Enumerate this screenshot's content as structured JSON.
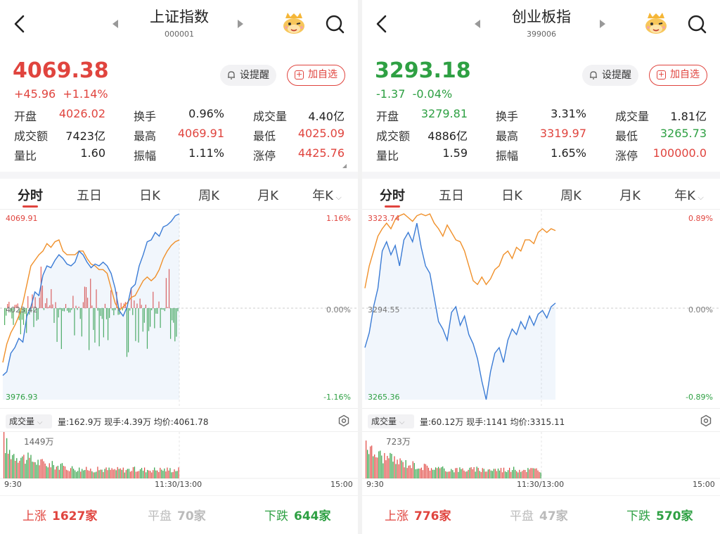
{
  "colors": {
    "up": "#e0443e",
    "down": "#2ea043",
    "line_price": "#3a7bd5",
    "line_avg": "#f0902a"
  },
  "panels": [
    {
      "title": "上证指数",
      "code": "000001",
      "price": "4069.38",
      "change": "+45.96",
      "change_pct": "+1.14%",
      "trend": "up",
      "alert_label": "设提醒",
      "add_label": "加自选",
      "stats": [
        {
          "label": "开盘",
          "value": "4026.02",
          "color": "up"
        },
        {
          "label": "换手",
          "value": "0.96%",
          "color": "neutral"
        },
        {
          "label": "成交量",
          "value": "4.40亿",
          "color": "neutral"
        },
        {
          "label": "成交额",
          "value": "7423亿",
          "color": "neutral"
        },
        {
          "label": "最高",
          "value": "4069.91",
          "color": "up"
        },
        {
          "label": "最低",
          "value": "4025.09",
          "color": "up"
        },
        {
          "label": "量比",
          "value": "1.60",
          "color": "neutral"
        },
        {
          "label": "振幅",
          "value": "1.11%",
          "color": "neutral"
        },
        {
          "label": "涨停",
          "value": "4425.76",
          "color": "up"
        }
      ],
      "tabs": [
        "分时",
        "五日",
        "日K",
        "周K",
        "月K",
        "年K"
      ],
      "chart": {
        "y_top": "4069.91",
        "y_mid": "4023.42",
        "y_bot": "3976.93",
        "pct_top": "1.16%",
        "pct_mid": "0.00%",
        "pct_bot": "-1.16%"
      },
      "volume": {
        "label": "成交量",
        "info": "量:162.9万  现手:4.39万  均价:4061.78",
        "max": "1449万"
      },
      "time_axis": [
        "9:30",
        "11:30/13:00",
        "15:00"
      ],
      "breadth": {
        "up_label": "上涨",
        "up": "1627家",
        "flat_label": "平盘",
        "flat": "70家",
        "down_label": "下跌",
        "down": "644家"
      }
    },
    {
      "title": "创业板指",
      "code": "399006",
      "price": "3293.18",
      "change": "-1.37",
      "change_pct": "-0.04%",
      "trend": "down",
      "alert_label": "设提醒",
      "add_label": "加自选",
      "stats": [
        {
          "label": "开盘",
          "value": "3279.81",
          "color": "down"
        },
        {
          "label": "换手",
          "value": "3.31%",
          "color": "neutral"
        },
        {
          "label": "成交量",
          "value": "1.81亿",
          "color": "neutral"
        },
        {
          "label": "成交额",
          "value": "4886亿",
          "color": "neutral"
        },
        {
          "label": "最高",
          "value": "3319.97",
          "color": "up"
        },
        {
          "label": "最低",
          "value": "3265.73",
          "color": "down"
        },
        {
          "label": "量比",
          "value": "1.59",
          "color": "neutral"
        },
        {
          "label": "振幅",
          "value": "1.65%",
          "color": "neutral"
        },
        {
          "label": "涨停",
          "value": "100000.0",
          "color": "up"
        }
      ],
      "tabs": [
        "分时",
        "五日",
        "日K",
        "周K",
        "月K",
        "年K"
      ],
      "chart": {
        "y_top": "3323.74",
        "y_mid": "3294.55",
        "y_bot": "3265.36",
        "pct_top": "0.89%",
        "pct_mid": "0.00%",
        "pct_bot": "-0.89%"
      },
      "volume": {
        "label": "成交量",
        "info": "量:60.12万  现手:1141  均价:3315.11",
        "max": "723万"
      },
      "time_axis": [
        "9:30",
        "11:30/13:00",
        "15:00"
      ],
      "breadth": {
        "up_label": "上涨",
        "up": "776家",
        "flat_label": "平盘",
        "flat": "47家",
        "down_label": "下跌",
        "down": "570家"
      }
    }
  ]
}
